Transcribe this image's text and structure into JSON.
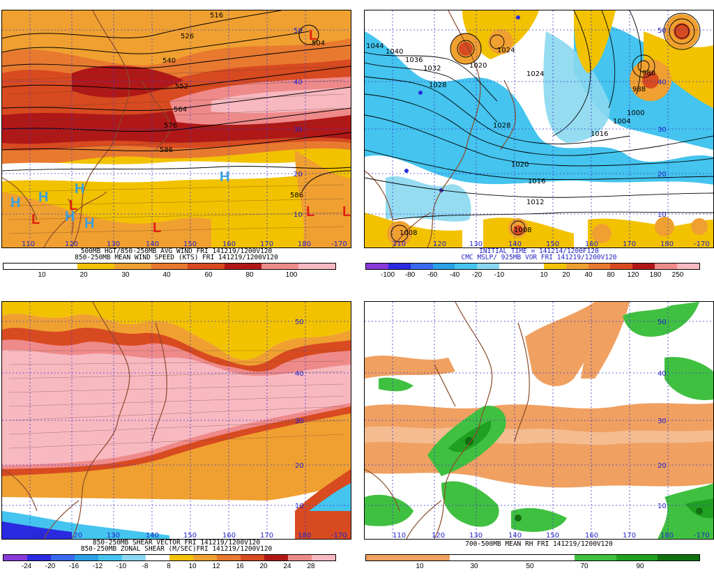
{
  "colors": {
    "land": "#8b4a2a",
    "grid": "#3a3ad0",
    "contour": "#000000",
    "high_marker": "#3aa0e0",
    "low_marker": "#e02010"
  },
  "panels": {
    "top_left": {
      "caption_line1": "500MB HGT/850-250MB AVG WIND FRI 141219/1200V120",
      "caption_line2": "850-250MB MEAN WIND SPEED (KTS) FRI 141219/1200V120",
      "colorbar": {
        "colors": [
          "#ffffff",
          "#ffffff",
          "#f2c200",
          "#f0a030",
          "#e87a30",
          "#d84a20",
          "#b01818",
          "#ef8a8a",
          "#f8b8c0"
        ],
        "labels": [
          "10",
          "20",
          "30",
          "40",
          "60",
          "80",
          "100"
        ]
      },
      "lon_labels": [
        "110",
        "120",
        "130",
        "140",
        "150",
        "160",
        "170",
        "180",
        "-170"
      ],
      "lat_labels": [
        "50",
        "40",
        "30",
        "20",
        "10"
      ],
      "contour_labels": [
        "516",
        "526",
        "540",
        "552",
        "564",
        "576",
        "586",
        "586",
        "504"
      ],
      "markers": {
        "high": "H",
        "low": "L"
      }
    },
    "top_right": {
      "caption_line1": "INITIAL TIME = 141214/1200F120",
      "caption_line2": "CMC MSLP/ 925MB VOR FRI 141219/1200V120",
      "colorbar": {
        "colors": [
          "#8a3ad8",
          "#2a2ae0",
          "#3a6af0",
          "#2aa0e8",
          "#44c4ee",
          "#8ad8f0",
          "#ffffff",
          "#ffffff",
          "#f2c200",
          "#f0a030",
          "#e87a30",
          "#d84a20",
          "#b01818",
          "#ef8a8a",
          "#f8b8c0"
        ],
        "labels": [
          "-100",
          "-80",
          "-60",
          "-40",
          "-20",
          "-10",
          "10",
          "20",
          "40",
          "80",
          "120",
          "180",
          "250"
        ]
      },
      "lon_labels": [
        "110",
        "120",
        "130",
        "140",
        "150",
        "160",
        "170",
        "180",
        "-170"
      ],
      "lat_labels": [
        "50",
        "40",
        "30",
        "20",
        "10"
      ],
      "isobar_labels": [
        "1044",
        "1040",
        "1036",
        "1032",
        "1028",
        "1028",
        "1024",
        "1024",
        "1020",
        "1020",
        "1016",
        "1016",
        "1012",
        "1008",
        "1008",
        "980",
        "988",
        "1000",
        "1004"
      ]
    },
    "bottom_left": {
      "caption_line1": "850-250MB SHEAR VECTOR FRI 141219/1200V120",
      "caption_line2": "850-250MB ZONAL SHEAR (M/SEC)FRI 141219/1200V120",
      "colorbar": {
        "colors": [
          "#8a3ad8",
          "#2a2ae0",
          "#3a6af0",
          "#2aa0e8",
          "#44c4ee",
          "#8ad8f0",
          "#ffffff",
          "#f2c200",
          "#f0a030",
          "#e87a30",
          "#d84a20",
          "#b01818",
          "#ef8a8a",
          "#f8b8c0"
        ],
        "labels": [
          "-24",
          "-20",
          "-16",
          "-12",
          "-10",
          "-8",
          "8",
          "10",
          "12",
          "16",
          "20",
          "24",
          "28"
        ]
      },
      "lon_labels": [
        "110",
        "120",
        "130",
        "140",
        "150",
        "160",
        "170",
        "180",
        "-170"
      ],
      "lat_labels": [
        "50",
        "40",
        "30",
        "20",
        "10"
      ]
    },
    "bottom_right": {
      "caption_line1": "700-500MB MEAN RH FRI 141219/1200V120",
      "colorbar": {
        "colors": [
          "#f0a060",
          "#f0a060",
          "#ffffff",
          "#ffffff",
          "#ffffff",
          "#40c040",
          "#20a020",
          "#107010"
        ],
        "labels": [
          "10",
          "30",
          "50",
          "70",
          "90"
        ]
      },
      "lon_labels": [
        "110",
        "120",
        "130",
        "140",
        "150",
        "160",
        "170",
        "180",
        "-170"
      ],
      "lat_labels": [
        "50",
        "40",
        "30",
        "20",
        "10"
      ]
    }
  }
}
